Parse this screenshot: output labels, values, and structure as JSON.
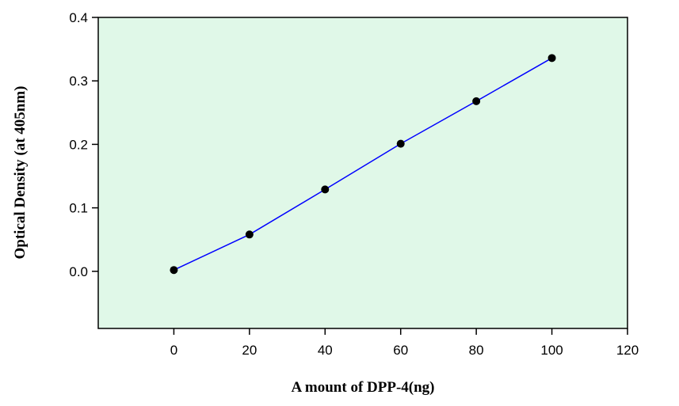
{
  "chart_data": {
    "type": "scatter",
    "title": "",
    "xlabel": "A mount of DPP-4(ng)",
    "ylabel": "Optical Density (at 405nm)",
    "xlim": [
      -20,
      120
    ],
    "ylim": [
      -0.09,
      0.4
    ],
    "x_ticks": [
      0,
      20,
      40,
      60,
      80,
      100,
      120
    ],
    "x_tick_labels": [
      "0",
      "20",
      "40",
      "60",
      "80",
      "100",
      "120"
    ],
    "y_ticks": [
      0.0,
      0.1,
      0.2,
      0.3,
      0.4
    ],
    "y_tick_labels": [
      "0.0",
      "0.1",
      "0.2",
      "0.3",
      "0.4"
    ],
    "grid": false,
    "legend": "none",
    "series": [
      {
        "x": [
          0,
          20,
          40,
          60,
          80,
          100
        ],
        "y": [
          0.002,
          0.058,
          0.129,
          0.201,
          0.268,
          0.336
        ],
        "marker": "circle",
        "marker_color": "#000000",
        "line": "fit",
        "line_color": "#0000ff"
      }
    ],
    "plot_background": "#e0f8e8",
    "axis_color": "#000000"
  }
}
